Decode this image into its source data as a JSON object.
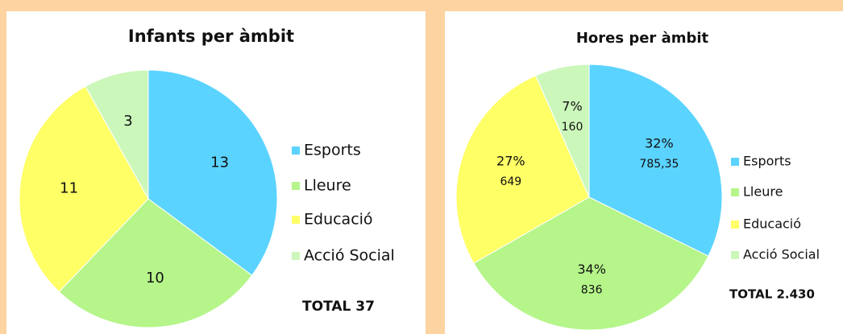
{
  "chart_data": [
    {
      "type": "pie",
      "title": "Infants per àmbit",
      "categories": [
        "Esports",
        "Lleure",
        "Educació",
        "Acció Social"
      ],
      "values": [
        13,
        10,
        11,
        3
      ],
      "colors": [
        "#5bd3ff",
        "#b5f58a",
        "#ffff66",
        "#ccf7bb"
      ],
      "annotation": "TOTAL 37",
      "legend": "right"
    },
    {
      "type": "pie",
      "title": "Hores per àmbit",
      "categories": [
        "Esports",
        "Lleure",
        "Educació",
        "Acció Social"
      ],
      "values": [
        785.35,
        836,
        649,
        160
      ],
      "value_labels": [
        "785,35",
        "836",
        "649",
        "160"
      ],
      "percent_labels": [
        "32%",
        "34%",
        "27%",
        "7%"
      ],
      "colors": [
        "#5bd3ff",
        "#b5f58a",
        "#ffff66",
        "#ccf7bb"
      ],
      "annotation": "TOTAL 2.430",
      "legend": "right"
    }
  ]
}
